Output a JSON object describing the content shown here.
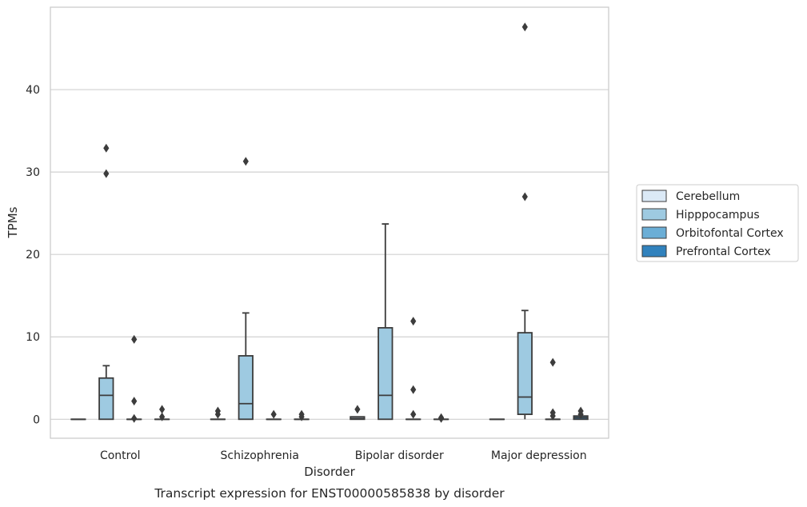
{
  "chart_data": {
    "type": "box",
    "caption": "Transcript expression for ENST00000585838 by disorder",
    "xlabel": "Disorder",
    "ylabel": "TPMs",
    "ylim": [
      -2.3,
      50
    ],
    "yticks": [
      0,
      10,
      20,
      30,
      40
    ],
    "grid": "horizontal",
    "legend_position": "right",
    "categories": [
      "Control",
      "Schizophrenia",
      "Bipolar disorder",
      "Major depression"
    ],
    "series": [
      {
        "name": "Cerebellum",
        "color": "#dbe9f6",
        "boxes": [
          {
            "whislo": 0,
            "q1": 0,
            "med": 0,
            "q3": 0,
            "whishi": 0,
            "fliers": []
          },
          {
            "whislo": 0,
            "q1": 0,
            "med": 0,
            "q3": 0,
            "whishi": 0,
            "fliers": [
              0.6,
              1.0
            ]
          },
          {
            "whislo": 0,
            "q1": 0,
            "med": 0.1,
            "q3": 0.3,
            "whishi": 0.3,
            "fliers": [
              1.2
            ]
          },
          {
            "whislo": 0,
            "q1": 0,
            "med": 0,
            "q3": 0,
            "whishi": 0,
            "fliers": []
          }
        ]
      },
      {
        "name": "Hipppocampus",
        "color": "#9ecae1",
        "boxes": [
          {
            "whislo": 0,
            "q1": 0,
            "med": 2.9,
            "q3": 5.0,
            "whishi": 6.5,
            "fliers": [
              29.8,
              32.9
            ]
          },
          {
            "whislo": 0,
            "q1": 0,
            "med": 1.9,
            "q3": 7.7,
            "whishi": 12.9,
            "fliers": [
              31.3
            ]
          },
          {
            "whislo": 0,
            "q1": 0,
            "med": 2.9,
            "q3": 11.1,
            "whishi": 23.7,
            "fliers": []
          },
          {
            "whislo": 0,
            "q1": 0.6,
            "med": 2.7,
            "q3": 10.5,
            "whishi": 13.2,
            "fliers": [
              27.0,
              47.6
            ]
          }
        ]
      },
      {
        "name": "Orbitofontal Cortex",
        "color": "#6baed6",
        "boxes": [
          {
            "whislo": 0,
            "q1": 0,
            "med": 0,
            "q3": 0,
            "whishi": 0,
            "fliers": [
              0.1,
              2.2,
              9.7
            ]
          },
          {
            "whislo": 0,
            "q1": 0,
            "med": 0,
            "q3": 0,
            "whishi": 0,
            "fliers": [
              0.6
            ]
          },
          {
            "whislo": 0,
            "q1": 0,
            "med": 0,
            "q3": 0,
            "whishi": 0,
            "fliers": [
              0.6,
              3.6,
              11.9
            ]
          },
          {
            "whislo": 0,
            "q1": 0,
            "med": 0,
            "q3": 0,
            "whishi": 0,
            "fliers": [
              0.4,
              0.8,
              6.9
            ]
          }
        ]
      },
      {
        "name": "Prefrontal Cortex",
        "color": "#3182bd",
        "boxes": [
          {
            "whislo": 0,
            "q1": 0,
            "med": 0,
            "q3": 0,
            "whishi": 0,
            "fliers": [
              0.3,
              1.2
            ]
          },
          {
            "whislo": 0,
            "q1": 0,
            "med": 0,
            "q3": 0,
            "whishi": 0,
            "fliers": [
              0.3,
              0.6
            ]
          },
          {
            "whislo": 0,
            "q1": 0,
            "med": 0,
            "q3": 0,
            "whishi": 0,
            "fliers": [
              0.1,
              0.2
            ]
          },
          {
            "whislo": 0,
            "q1": 0,
            "med": 0.2,
            "q3": 0.4,
            "whishi": 0.4,
            "fliers": [
              0.6,
              1.0
            ]
          }
        ]
      }
    ]
  }
}
